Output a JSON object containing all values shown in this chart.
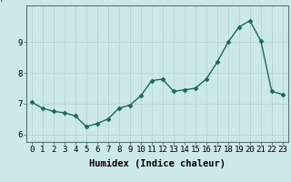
{
  "xlabel": "Humidex (Indice chaleur)",
  "x_values": [
    0,
    1,
    2,
    3,
    4,
    5,
    6,
    7,
    8,
    9,
    10,
    11,
    12,
    13,
    14,
    15,
    16,
    17,
    18,
    19,
    20,
    21,
    22,
    23
  ],
  "y_values": [
    7.05,
    6.85,
    6.75,
    6.7,
    6.6,
    6.25,
    6.35,
    6.5,
    6.85,
    6.95,
    7.25,
    7.75,
    7.8,
    7.4,
    7.45,
    7.5,
    7.8,
    8.35,
    9.0,
    9.5,
    9.7,
    9.05,
    7.4,
    7.3
  ],
  "line_color": "#1a6b5a",
  "marker": "D",
  "marker_size": 2.5,
  "bg_color": "#cce8e8",
  "grid_color": "#b8d4d4",
  "ylim": [
    5.75,
    10.2
  ],
  "xlim": [
    -0.5,
    23.5
  ],
  "yticks": [
    6,
    7,
    8,
    9
  ],
  "xticks": [
    0,
    1,
    2,
    3,
    4,
    5,
    6,
    7,
    8,
    9,
    10,
    11,
    12,
    13,
    14,
    15,
    16,
    17,
    18,
    19,
    20,
    21,
    22,
    23
  ],
  "xlabel_fontsize": 7.5,
  "tick_fontsize": 6.5,
  "linewidth": 1.0,
  "spine_color": "#557777"
}
